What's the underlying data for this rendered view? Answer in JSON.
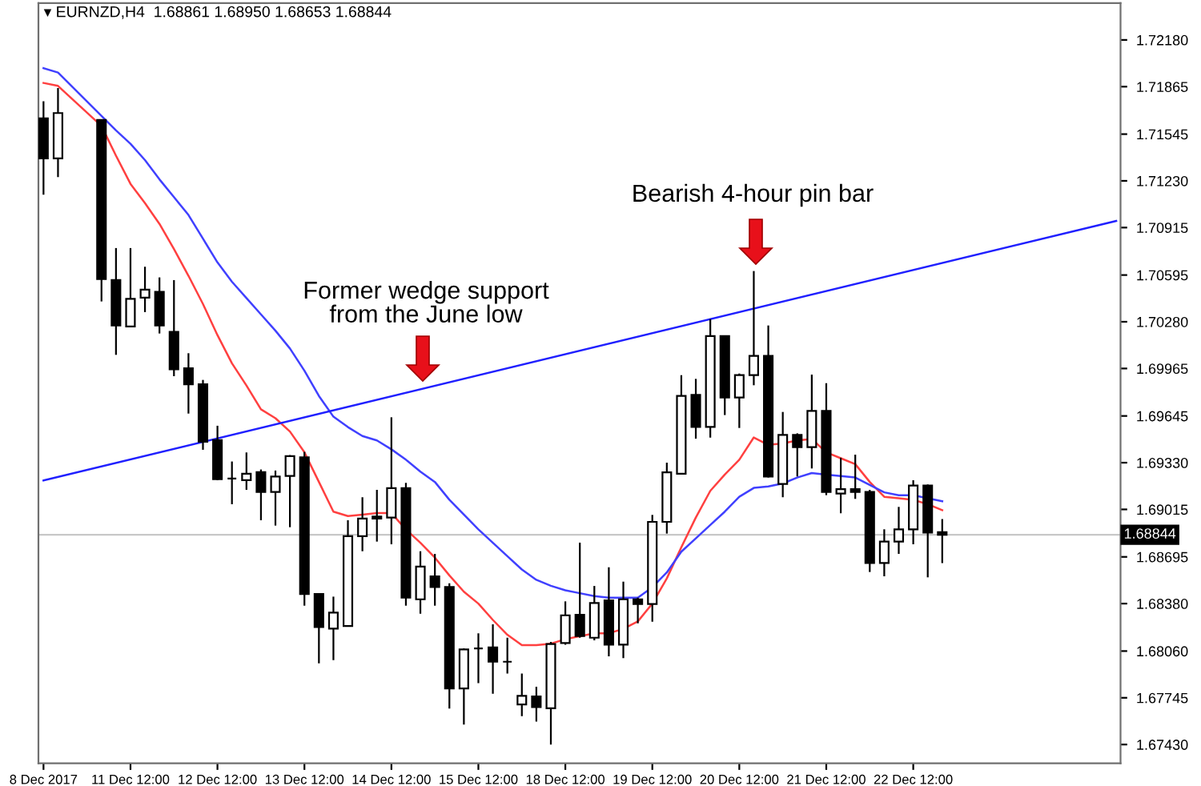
{
  "chart_data": {
    "type": "candlestick",
    "title": "EURNZD,H4  1.68861 1.68950 1.68653 1.68844",
    "categories": [
      "8 Dec 2017",
      null,
      null,
      null,
      null,
      null,
      "11 Dec 12:00",
      null,
      null,
      null,
      null,
      null,
      "12 Dec 12:00",
      null,
      null,
      null,
      null,
      null,
      "13 Dec 12:00",
      null,
      null,
      null,
      null,
      null,
      "14 Dec 12:00",
      null,
      null,
      null,
      null,
      null,
      "15 Dec 12:00",
      null,
      null,
      null,
      null,
      null,
      "18 Dec 12:00",
      null,
      null,
      null,
      null,
      null,
      "19 Dec 12:00",
      null,
      null,
      null,
      null,
      null,
      "20 Dec 12:00",
      null,
      null,
      null,
      null,
      null,
      "21 Dec 12:00",
      null,
      null,
      null,
      null,
      null,
      "22 Dec 12:00",
      null,
      null,
      null,
      null,
      null,
      null,
      null,
      null,
      null,
      null,
      null,
      null,
      null,
      null
    ],
    "ohlc": [
      [
        1.71651,
        1.71766,
        1.71137,
        1.71381
      ],
      [
        1.71381,
        1.71856,
        1.71255,
        1.71687
      ],
      null,
      null,
      [
        1.7164,
        1.7164,
        1.70417,
        1.70568
      ],
      [
        1.70561,
        1.70777,
        1.70057,
        1.70255
      ],
      [
        1.70248,
        1.70777,
        1.70248,
        1.70435
      ],
      [
        1.70442,
        1.70651,
        1.70345,
        1.70496
      ],
      [
        1.70482,
        1.70579,
        1.70201,
        1.70255
      ],
      [
        1.70212,
        1.70561,
        1.69913,
        1.6996
      ],
      [
        1.69967,
        1.70068,
        1.69661,
        1.69859
      ],
      [
        1.69859,
        1.69888,
        1.69417,
        1.69471
      ],
      [
        1.69482,
        1.69579,
        1.69212,
        1.69219
      ],
      [
        1.69223,
        1.69338,
        1.6905,
        1.69223
      ],
      [
        1.69212,
        1.69399,
        1.69147,
        1.69255
      ],
      [
        1.69266,
        1.69284,
        1.68942,
        1.69133
      ],
      [
        1.69133,
        1.69277,
        1.68906,
        1.69237
      ],
      [
        1.69241,
        1.69381,
        1.68895,
        1.69374
      ],
      [
        1.69366,
        1.69403,
        1.68366,
        1.68445
      ],
      [
        1.68445,
        1.68445,
        1.67977,
        1.68222
      ],
      [
        1.68211,
        1.68427,
        1.67999,
        1.68319
      ],
      [
        1.68229,
        1.68942,
        1.68229,
        1.68834
      ],
      [
        1.68834,
        1.69097,
        1.68733,
        1.68953
      ],
      [
        1.68967,
        1.69147,
        1.68798,
        1.68953
      ],
      [
        1.6896,
        1.69636,
        1.6878,
        1.69158
      ],
      [
        1.69158,
        1.69194,
        1.68366,
        1.6842
      ],
      [
        1.68409,
        1.68733,
        1.68312,
        1.68629
      ],
      [
        1.68564,
        1.68715,
        1.68366,
        1.68492
      ],
      [
        1.68492,
        1.68517,
        1.67672,
        1.67808
      ],
      [
        1.67808,
        1.68078,
        1.67564,
        1.68071
      ],
      [
        1.68078,
        1.68179,
        1.67844,
        1.68078
      ],
      [
        1.68085,
        1.6824,
        1.67772,
        1.67988
      ],
      [
        1.67988,
        1.6815,
        1.67909,
        1.67988
      ],
      [
        1.677,
        1.67909,
        1.67621,
        1.67758
      ],
      [
        1.67754,
        1.67819,
        1.67585,
        1.67682
      ],
      [
        1.67675,
        1.68121,
        1.6743,
        1.68107
      ],
      [
        1.68114,
        1.68395,
        1.68103,
        1.68301
      ],
      [
        1.68305,
        1.68791,
        1.6815,
        1.68161
      ],
      [
        1.6815,
        1.68499,
        1.68132,
        1.68384
      ],
      [
        1.68402,
        1.68625,
        1.68024,
        1.68103
      ],
      [
        1.68103,
        1.68528,
        1.68013,
        1.68409
      ],
      [
        1.68409,
        1.6842,
        1.68247,
        1.68377
      ],
      [
        1.68377,
        1.68978,
        1.68258,
        1.68931
      ],
      [
        1.68931,
        1.6933,
        1.68852,
        1.69265
      ],
      [
        1.69255,
        1.6992,
        1.69255,
        1.6978
      ],
      [
        1.69787,
        1.69895,
        1.69492,
        1.69571
      ],
      [
        1.69571,
        1.70298,
        1.69499,
        1.70183
      ],
      [
        1.70183,
        1.70183,
        1.69651,
        1.69769
      ],
      [
        1.69769,
        1.69931,
        1.69564,
        1.6992
      ],
      [
        1.6992,
        1.70622,
        1.69852,
        1.7005
      ],
      [
        1.7005,
        1.70255,
        1.6923,
        1.69237
      ],
      [
        1.69187,
        1.69672,
        1.69097,
        1.69517
      ],
      [
        1.69517,
        1.69528,
        1.69237,
        1.69435
      ],
      [
        1.69435,
        1.69924,
        1.69291,
        1.69679
      ],
      [
        1.69679,
        1.69866,
        1.69111,
        1.69133
      ],
      [
        1.69122,
        1.69363,
        1.68989,
        1.69151
      ],
      [
        1.69151,
        1.69384,
        1.69086,
        1.69133
      ],
      [
        1.69133,
        1.69147,
        1.68593,
        1.68654
      ],
      [
        1.68654,
        1.68881,
        1.68564,
        1.68798
      ],
      [
        1.68798,
        1.69032,
        1.68715,
        1.68881
      ],
      [
        1.68881,
        1.69212,
        1.6878,
        1.69176
      ],
      [
        1.69176,
        1.69183,
        1.68557,
        1.68859
      ],
      [
        1.68861,
        1.6895,
        1.68653,
        1.68844
      ],
      null,
      null,
      null,
      null,
      null,
      null,
      null,
      null,
      null,
      null,
      null,
      null
    ],
    "series": [
      {
        "type": "line",
        "color": "#ff4040",
        "values": [
          1.7189,
          1.7187,
          null,
          null,
          1.716,
          1.714,
          1.7121,
          1.7108,
          1.7094,
          1.7077,
          1.7059,
          1.704,
          1.7019,
          1.7,
          1.6985,
          1.6969,
          1.6963,
          1.6954,
          1.694,
          1.692,
          1.69,
          1.6897,
          1.6898,
          1.6899,
          1.6899,
          1.6888,
          1.6879,
          1.6869,
          1.6857,
          1.6846,
          1.6838,
          1.6827,
          1.6817,
          1.681,
          1.681,
          1.6811,
          1.6814,
          1.6816,
          1.6818,
          1.6818,
          1.6821,
          1.6826,
          1.6838,
          1.6855,
          1.6876,
          1.6896,
          1.6914,
          1.6925,
          1.6935,
          1.695,
          1.6945,
          1.6946,
          1.6948,
          1.6949,
          1.694,
          1.6936,
          1.6932,
          1.692,
          1.691,
          1.6909,
          1.6908,
          1.6905,
          1.6901,
          null,
          null,
          null,
          null,
          null,
          null,
          null,
          null,
          null,
          null,
          null,
          null
        ]
      },
      {
        "type": "line",
        "color": "#4040ff",
        "values": [
          1.7199,
          1.7196,
          null,
          null,
          null,
          1.7157,
          1.7148,
          1.7137,
          1.7124,
          1.7112,
          1.71,
          1.7084,
          1.7068,
          1.7055,
          1.7044,
          1.7033,
          1.7022,
          1.701,
          1.6995,
          1.6978,
          1.6964,
          1.6957,
          1.6951,
          1.6948,
          1.6942,
          1.6935,
          1.6927,
          1.692,
          1.6908,
          1.6898,
          1.6888,
          1.6879,
          1.687,
          1.6861,
          1.6854,
          1.685,
          1.6847,
          1.6845,
          1.6843,
          1.6842,
          1.6842,
          1.6842,
          1.6849,
          1.6859,
          1.6873,
          1.6882,
          1.6891,
          1.69,
          1.691,
          1.6916,
          1.6917,
          1.6919,
          1.6923,
          1.6926,
          1.6925,
          1.6924,
          1.6923,
          1.6918,
          1.6913,
          1.6911,
          1.6911,
          1.6909,
          1.6907,
          null,
          null,
          null,
          null,
          null,
          null,
          null,
          null,
          null,
          null,
          null,
          null
        ]
      },
      {
        "type": "line",
        "color": "#2020ff",
        "values": [
          1.6921,
          null,
          null,
          null,
          null,
          null,
          null,
          null,
          null,
          null,
          null,
          null,
          null,
          null,
          null,
          null,
          null,
          null,
          null,
          null,
          null,
          null,
          null,
          null,
          null,
          null,
          null,
          null,
          null,
          null,
          null,
          null,
          null,
          null,
          null,
          null,
          null,
          null,
          null,
          null,
          null,
          null,
          null,
          null,
          null,
          null,
          null,
          null,
          null,
          null,
          null,
          null,
          null,
          null,
          null,
          null,
          null,
          null,
          null,
          null,
          null,
          null,
          null,
          null,
          null,
          null,
          null,
          null,
          null,
          null,
          null,
          null,
          null,
          null,
          1.7096
        ]
      }
    ],
    "ylim": [
      1.67304,
      1.72428
    ],
    "yticks": [
      {
        "value": 1.7218,
        "label": "1.72180"
      },
      {
        "value": 1.71865,
        "label": "1.71865"
      },
      {
        "value": 1.71545,
        "label": "1.71545"
      },
      {
        "value": 1.7123,
        "label": "1.71230"
      },
      {
        "value": 1.70915,
        "label": "1.70915"
      },
      {
        "value": 1.70595,
        "label": "1.70595"
      },
      {
        "value": 1.7028,
        "label": "1.70280"
      },
      {
        "value": 1.69965,
        "label": "1.69965"
      },
      {
        "value": 1.69645,
        "label": "1.69645"
      },
      {
        "value": 1.6933,
        "label": "1.69330"
      },
      {
        "value": 1.69015,
        "label": "1.69015"
      },
      {
        "value": 1.68695,
        "label": "1.68695"
      },
      {
        "value": 1.6838,
        "label": "1.68380"
      },
      {
        "value": 1.6806,
        "label": "1.68060"
      },
      {
        "value": 1.67745,
        "label": "1.67745"
      },
      {
        "value": 1.6743,
        "label": "1.67430"
      }
    ],
    "ref_lines": [
      {
        "axis": "y",
        "value": 1.68844,
        "label": "1.68844",
        "color": "#c8c8c8"
      }
    ],
    "annotations": [
      "Former wedge support\nfrom the June low",
      "Bearish 4-hour pin bar"
    ]
  }
}
